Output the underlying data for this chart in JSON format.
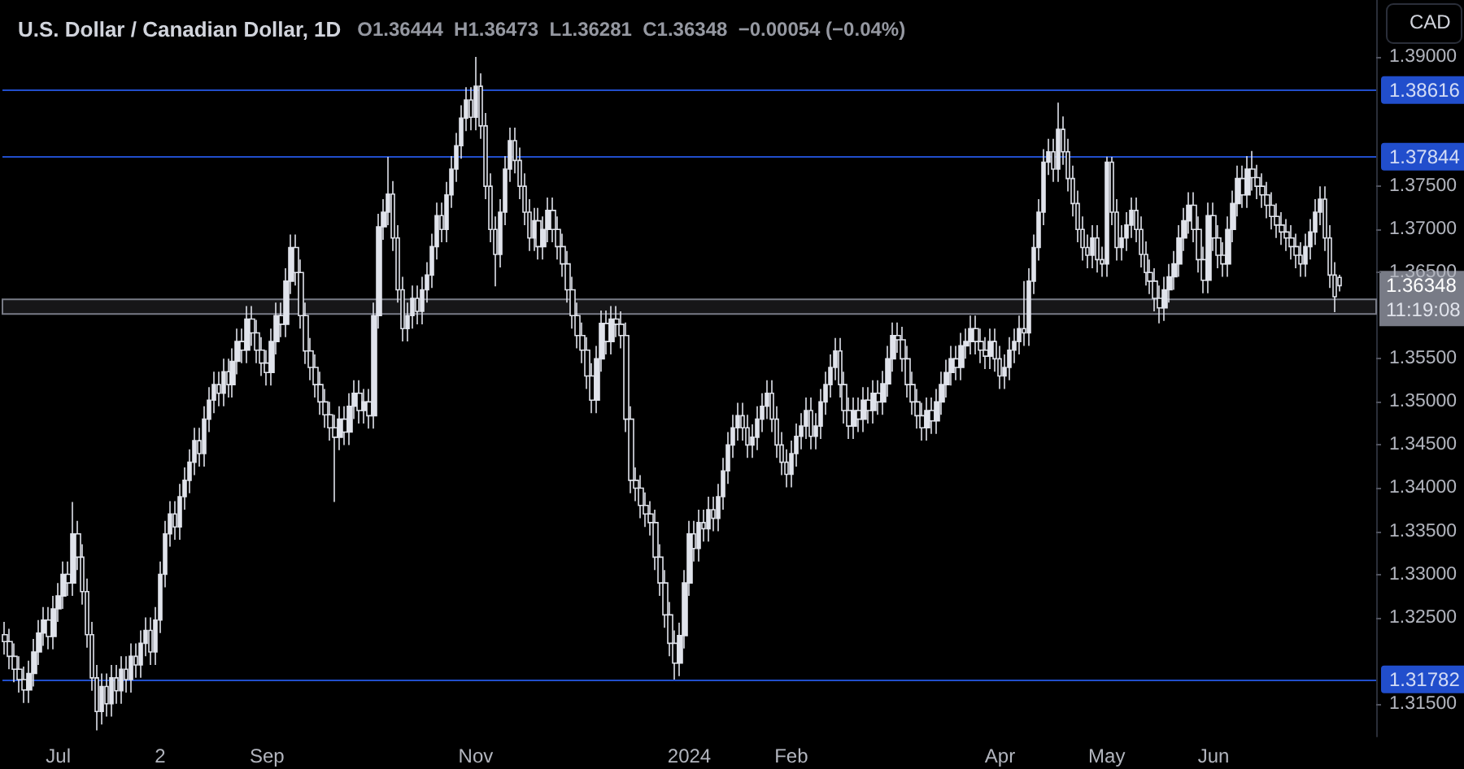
{
  "chart_data": {
    "type": "candlestick",
    "title": "U.S. Dollar / Canadian Dollar, 1D",
    "subtitle": "O1.36444  H1.36473  L1.36281  C1.36348  −0.00054 (−0.04%)",
    "categories": [
      null,
      null,
      null,
      null,
      null,
      null,
      null,
      null,
      null,
      null,
      null,
      "Jul",
      null,
      null,
      null,
      null,
      null,
      null,
      null,
      null,
      null,
      null,
      null,
      null,
      null,
      null,
      null,
      null,
      null,
      null,
      null,
      null,
      "2",
      null,
      null,
      null,
      null,
      null,
      null,
      null,
      null,
      null,
      null,
      null,
      null,
      null,
      null,
      null,
      null,
      null,
      null,
      null,
      null,
      null,
      "Sep",
      null,
      null,
      null,
      null,
      null,
      null,
      null,
      null,
      null,
      null,
      null,
      null,
      null,
      null,
      null,
      null,
      null,
      null,
      null,
      null,
      null,
      null,
      null,
      null,
      null,
      null,
      null,
      null,
      null,
      null,
      null,
      null,
      null,
      null,
      null,
      null,
      null,
      null,
      null,
      null,
      null,
      null,
      "Nov",
      null,
      null,
      null,
      null,
      null,
      null,
      null,
      null,
      null,
      null,
      null,
      null,
      null,
      null,
      null,
      null,
      null,
      null,
      null,
      null,
      null,
      null,
      null,
      null,
      null,
      null,
      null,
      null,
      null,
      null,
      null,
      null,
      null,
      null,
      null,
      null,
      null,
      null,
      null,
      null,
      null,
      null,
      null,
      "2024",
      null,
      null,
      null,
      null,
      null,
      null,
      null,
      null,
      null,
      null,
      null,
      null,
      null,
      null,
      null,
      null,
      null,
      null,
      null,
      null,
      "Feb",
      null,
      null,
      null,
      null,
      null,
      null,
      null,
      null,
      null,
      null,
      null,
      null,
      null,
      null,
      null,
      null,
      null,
      null,
      null,
      null,
      null,
      null,
      null,
      null,
      null,
      null,
      null,
      null,
      null,
      null,
      null,
      null,
      null,
      null,
      null,
      null,
      null,
      null,
      null,
      null,
      null,
      null,
      "Apr",
      null,
      null,
      null,
      null,
      null,
      null,
      null,
      null,
      null,
      null,
      null,
      null,
      null,
      null,
      null,
      null,
      null,
      null,
      null,
      null,
      null,
      "May",
      null,
      null,
      null,
      null,
      null,
      null,
      null,
      null,
      null,
      null,
      null,
      null,
      null,
      null,
      null,
      null,
      null,
      null,
      null,
      null,
      null,
      "Jun",
      null,
      null,
      null,
      null,
      null,
      null,
      null,
      null,
      null,
      null,
      null,
      null,
      null,
      null,
      null,
      null,
      null,
      null,
      null,
      null,
      null,
      null,
      null,
      null,
      null,
      null
    ],
    "series": [
      {
        "color": "#e0e3eb",
        "ohlc": [
          [
            1.323,
            1.3245,
            1.3207,
            1.3222
          ],
          [
            1.3222,
            1.3237,
            1.319,
            1.3205
          ],
          [
            1.3205,
            1.322,
            1.3175,
            1.319
          ],
          [
            1.319,
            1.3205,
            1.3163,
            1.3178
          ],
          [
            1.3178,
            1.3193,
            1.3151,
            1.3166
          ],
          [
            1.3166,
            1.32,
            1.3151,
            1.3185
          ],
          [
            1.3185,
            1.3225,
            1.317,
            1.321
          ],
          [
            1.321,
            1.3247,
            1.3195,
            1.3232
          ],
          [
            1.3232,
            1.3262,
            1.3217,
            1.3247
          ],
          [
            1.3247,
            1.3262,
            1.3213,
            1.3228
          ],
          [
            1.3228,
            1.3275,
            1.3213,
            1.326
          ],
          [
            1.326,
            1.329,
            1.3245,
            1.3275
          ],
          [
            1.3275,
            1.3315,
            1.326,
            1.33
          ],
          [
            1.33,
            1.3315,
            1.3275,
            1.329
          ],
          [
            1.329,
            1.3384,
            1.3275,
            1.3347
          ],
          [
            1.3347,
            1.3362,
            1.3305,
            1.332
          ],
          [
            1.332,
            1.3335,
            1.3265,
            1.328
          ],
          [
            1.328,
            1.3295,
            1.3215,
            1.323
          ],
          [
            1.323,
            1.3245,
            1.3165,
            1.318
          ],
          [
            1.318,
            1.3195,
            1.3119,
            1.3141
          ],
          [
            1.3141,
            1.3185,
            1.3126,
            1.317
          ],
          [
            1.317,
            1.3185,
            1.3135,
            1.315
          ],
          [
            1.315,
            1.3195,
            1.3135,
            1.318
          ],
          [
            1.318,
            1.3195,
            1.315,
            1.3165
          ],
          [
            1.3165,
            1.3205,
            1.315,
            1.319
          ],
          [
            1.319,
            1.3205,
            1.3163,
            1.3178
          ],
          [
            1.3178,
            1.322,
            1.3163,
            1.3205
          ],
          [
            1.3205,
            1.322,
            1.318,
            1.3195
          ],
          [
            1.3195,
            1.3235,
            1.318,
            1.322
          ],
          [
            1.322,
            1.325,
            1.3205,
            1.3235
          ],
          [
            1.3235,
            1.325,
            1.3195,
            1.321
          ],
          [
            1.321,
            1.3262,
            1.3195,
            1.3247
          ],
          [
            1.3247,
            1.3315,
            1.3232,
            1.33
          ],
          [
            1.33,
            1.3362,
            1.3285,
            1.3347
          ],
          [
            1.3347,
            1.3385,
            1.3332,
            1.337
          ],
          [
            1.337,
            1.3385,
            1.334,
            1.3355
          ],
          [
            1.3355,
            1.3405,
            1.334,
            1.339
          ],
          [
            1.339,
            1.3424,
            1.3375,
            1.3409
          ],
          [
            1.3409,
            1.3445,
            1.3394,
            1.343
          ],
          [
            1.343,
            1.347,
            1.3415,
            1.3455
          ],
          [
            1.3455,
            1.347,
            1.3425,
            1.344
          ],
          [
            1.344,
            1.3495,
            1.3425,
            1.348
          ],
          [
            1.348,
            1.3517,
            1.3465,
            1.3502
          ],
          [
            1.3502,
            1.3535,
            1.3487,
            1.352
          ],
          [
            1.352,
            1.3535,
            1.3495,
            1.351
          ],
          [
            1.351,
            1.355,
            1.3495,
            1.3535
          ],
          [
            1.3535,
            1.355,
            1.3505,
            1.352
          ],
          [
            1.352,
            1.3562,
            1.3505,
            1.3547
          ],
          [
            1.3547,
            1.3585,
            1.3532,
            1.357
          ],
          [
            1.357,
            1.3585,
            1.3545,
            1.356
          ],
          [
            1.356,
            1.3611,
            1.3545,
            1.3596
          ],
          [
            1.3596,
            1.3611,
            1.3565,
            1.358
          ],
          [
            1.358,
            1.3595,
            1.3545,
            1.356
          ],
          [
            1.356,
            1.3575,
            1.353,
            1.3545
          ],
          [
            1.3545,
            1.356,
            1.3519,
            1.3534
          ],
          [
            1.3534,
            1.3585,
            1.3519,
            1.357
          ],
          [
            1.357,
            1.3615,
            1.3555,
            1.36
          ],
          [
            1.36,
            1.3615,
            1.3575,
            1.359
          ],
          [
            1.359,
            1.3655,
            1.3575,
            1.364
          ],
          [
            1.364,
            1.3694,
            1.3625,
            1.3679
          ],
          [
            1.3679,
            1.3694,
            1.3635,
            1.365
          ],
          [
            1.365,
            1.3665,
            1.3585,
            1.36
          ],
          [
            1.36,
            1.3615,
            1.3544,
            1.3559
          ],
          [
            1.3559,
            1.3574,
            1.3525,
            1.354
          ],
          [
            1.354,
            1.3555,
            1.3505,
            1.352
          ],
          [
            1.352,
            1.3535,
            1.3485,
            1.35
          ],
          [
            1.35,
            1.3515,
            1.347,
            1.3485
          ],
          [
            1.3485,
            1.35,
            1.3455,
            1.347
          ],
          [
            1.347,
            1.3485,
            1.3384,
            1.3459
          ],
          [
            1.3459,
            1.3495,
            1.3444,
            1.348
          ],
          [
            1.348,
            1.3495,
            1.345,
            1.3465
          ],
          [
            1.3465,
            1.351,
            1.345,
            1.3495
          ],
          [
            1.3495,
            1.3525,
            1.348,
            1.351
          ],
          [
            1.351,
            1.3525,
            1.3475,
            1.349
          ],
          [
            1.349,
            1.3515,
            1.3475,
            1.35
          ],
          [
            1.35,
            1.3515,
            1.3469,
            1.3484
          ],
          [
            1.3484,
            1.3615,
            1.3469,
            1.36
          ],
          [
            1.36,
            1.3718,
            1.3585,
            1.3703
          ],
          [
            1.3703,
            1.3735,
            1.3688,
            1.372
          ],
          [
            1.372,
            1.3784,
            1.3705,
            1.3741
          ],
          [
            1.3741,
            1.3756,
            1.3675,
            1.369
          ],
          [
            1.369,
            1.3705,
            1.3615,
            1.363
          ],
          [
            1.363,
            1.3645,
            1.357,
            1.3585
          ],
          [
            1.3585,
            1.3615,
            1.357,
            1.36
          ],
          [
            1.36,
            1.3635,
            1.3585,
            1.362
          ],
          [
            1.362,
            1.3635,
            1.359,
            1.3605
          ],
          [
            1.3605,
            1.3645,
            1.359,
            1.363
          ],
          [
            1.363,
            1.3662,
            1.3615,
            1.3647
          ],
          [
            1.3647,
            1.3695,
            1.3632,
            1.368
          ],
          [
            1.368,
            1.3731,
            1.3665,
            1.3716
          ],
          [
            1.3716,
            1.3731,
            1.3685,
            1.37
          ],
          [
            1.37,
            1.3755,
            1.3685,
            1.374
          ],
          [
            1.374,
            1.3785,
            1.3725,
            1.377
          ],
          [
            1.377,
            1.3812,
            1.3755,
            1.3797
          ],
          [
            1.3797,
            1.3844,
            1.3782,
            1.3829
          ],
          [
            1.3829,
            1.3865,
            1.3814,
            1.385
          ],
          [
            1.385,
            1.3865,
            1.3815,
            1.383
          ],
          [
            1.383,
            1.39,
            1.3815,
            1.3866
          ],
          [
            1.3866,
            1.3881,
            1.3805,
            1.382
          ],
          [
            1.382,
            1.3835,
            1.3735,
            1.375
          ],
          [
            1.375,
            1.3765,
            1.3685,
            1.37
          ],
          [
            1.37,
            1.3715,
            1.3634,
            1.3671
          ],
          [
            1.3671,
            1.3735,
            1.3656,
            1.372
          ],
          [
            1.372,
            1.3785,
            1.3705,
            1.377
          ],
          [
            1.377,
            1.3818,
            1.3755,
            1.3803
          ],
          [
            1.3803,
            1.3818,
            1.3765,
            1.378
          ],
          [
            1.378,
            1.3795,
            1.3735,
            1.375
          ],
          [
            1.375,
            1.3765,
            1.3705,
            1.372
          ],
          [
            1.372,
            1.3735,
            1.3675,
            1.369
          ],
          [
            1.369,
            1.3725,
            1.3675,
            1.371
          ],
          [
            1.371,
            1.3725,
            1.3665,
            1.368
          ],
          [
            1.368,
            1.3715,
            1.3665,
            1.37
          ],
          [
            1.37,
            1.3737,
            1.3685,
            1.3722
          ],
          [
            1.3722,
            1.3737,
            1.3685,
            1.37
          ],
          [
            1.37,
            1.3715,
            1.3665,
            1.368
          ],
          [
            1.368,
            1.3695,
            1.3645,
            1.366
          ],
          [
            1.366,
            1.3675,
            1.3615,
            1.363
          ],
          [
            1.363,
            1.3645,
            1.3585,
            1.36
          ],
          [
            1.36,
            1.3615,
            1.3562,
            1.3577
          ],
          [
            1.3577,
            1.3592,
            1.3545,
            1.356
          ],
          [
            1.356,
            1.3575,
            1.3515,
            1.353
          ],
          [
            1.353,
            1.3545,
            1.3487,
            1.3502
          ],
          [
            1.3502,
            1.3565,
            1.3487,
            1.355
          ],
          [
            1.355,
            1.3606,
            1.3535,
            1.3591
          ],
          [
            1.3591,
            1.3606,
            1.3555,
            1.357
          ],
          [
            1.357,
            1.3611,
            1.3555,
            1.3596
          ],
          [
            1.3596,
            1.3611,
            1.3575,
            1.359
          ],
          [
            1.359,
            1.3605,
            1.3562,
            1.3577
          ],
          [
            1.3577,
            1.3592,
            1.3465,
            1.348
          ],
          [
            1.348,
            1.3495,
            1.3394,
            1.3409
          ],
          [
            1.3409,
            1.3424,
            1.3385,
            1.34
          ],
          [
            1.34,
            1.3415,
            1.3365,
            1.338
          ],
          [
            1.338,
            1.3395,
            1.3355,
            1.337
          ],
          [
            1.337,
            1.3385,
            1.3345,
            1.336
          ],
          [
            1.336,
            1.3375,
            1.3305,
            1.332
          ],
          [
            1.332,
            1.3335,
            1.3275,
            1.329
          ],
          [
            1.329,
            1.3305,
            1.3238,
            1.3253
          ],
          [
            1.3253,
            1.3268,
            1.3205,
            1.322
          ],
          [
            1.322,
            1.3235,
            1.3178,
            1.3197
          ],
          [
            1.3197,
            1.3244,
            1.3182,
            1.3229
          ],
          [
            1.3229,
            1.3305,
            1.3214,
            1.329
          ],
          [
            1.329,
            1.3362,
            1.3275,
            1.3347
          ],
          [
            1.3347,
            1.3362,
            1.3315,
            1.333
          ],
          [
            1.333,
            1.3375,
            1.3315,
            1.336
          ],
          [
            1.336,
            1.3375,
            1.3338,
            1.3353
          ],
          [
            1.3353,
            1.339,
            1.3338,
            1.3375
          ],
          [
            1.3375,
            1.339,
            1.335,
            1.3365
          ],
          [
            1.3365,
            1.3405,
            1.335,
            1.339
          ],
          [
            1.339,
            1.3435,
            1.3375,
            1.342
          ],
          [
            1.342,
            1.3465,
            1.3405,
            1.345
          ],
          [
            1.345,
            1.3485,
            1.3435,
            1.347
          ],
          [
            1.347,
            1.3499,
            1.3455,
            1.3484
          ],
          [
            1.3484,
            1.3499,
            1.3455,
            1.347
          ],
          [
            1.347,
            1.3485,
            1.3435,
            1.345
          ],
          [
            1.345,
            1.3474,
            1.3435,
            1.3459
          ],
          [
            1.3459,
            1.3495,
            1.3444,
            1.348
          ],
          [
            1.348,
            1.351,
            1.3465,
            1.3495
          ],
          [
            1.3495,
            1.3525,
            1.348,
            1.351
          ],
          [
            1.351,
            1.3525,
            1.3465,
            1.348
          ],
          [
            1.348,
            1.3495,
            1.3435,
            1.345
          ],
          [
            1.345,
            1.3465,
            1.3415,
            1.343
          ],
          [
            1.343,
            1.3445,
            1.3401,
            1.3416
          ],
          [
            1.3416,
            1.3455,
            1.3401,
            1.344
          ],
          [
            1.344,
            1.3475,
            1.3425,
            1.346
          ],
          [
            1.346,
            1.3487,
            1.3445,
            1.3472
          ],
          [
            1.3472,
            1.3505,
            1.3457,
            1.349
          ],
          [
            1.349,
            1.3505,
            1.3445,
            1.346
          ],
          [
            1.346,
            1.3487,
            1.3445,
            1.3472
          ],
          [
            1.3472,
            1.3515,
            1.3457,
            1.35
          ],
          [
            1.35,
            1.3535,
            1.3485,
            1.352
          ],
          [
            1.352,
            1.3555,
            1.3505,
            1.354
          ],
          [
            1.354,
            1.3574,
            1.3525,
            1.3559
          ],
          [
            1.3559,
            1.3574,
            1.3505,
            1.352
          ],
          [
            1.352,
            1.3535,
            1.3475,
            1.349
          ],
          [
            1.349,
            1.3505,
            1.3457,
            1.3472
          ],
          [
            1.3472,
            1.3505,
            1.3457,
            1.349
          ],
          [
            1.349,
            1.3505,
            1.3465,
            1.348
          ],
          [
            1.348,
            1.3517,
            1.3465,
            1.3502
          ],
          [
            1.3502,
            1.3517,
            1.3475,
            1.349
          ],
          [
            1.349,
            1.3525,
            1.3475,
            1.351
          ],
          [
            1.351,
            1.3525,
            1.3485,
            1.35
          ],
          [
            1.35,
            1.3536,
            1.3485,
            1.3521
          ],
          [
            1.3521,
            1.3565,
            1.3506,
            1.355
          ],
          [
            1.355,
            1.3592,
            1.3535,
            1.3577
          ],
          [
            1.3577,
            1.3592,
            1.3557,
            1.3572
          ],
          [
            1.3572,
            1.3587,
            1.3535,
            1.355
          ],
          [
            1.355,
            1.3565,
            1.3505,
            1.352
          ],
          [
            1.352,
            1.3535,
            1.3485,
            1.35
          ],
          [
            1.35,
            1.3515,
            1.3469,
            1.3484
          ],
          [
            1.3484,
            1.3499,
            1.3455,
            1.347
          ],
          [
            1.347,
            1.3505,
            1.3455,
            1.349
          ],
          [
            1.349,
            1.3505,
            1.3463,
            1.3478
          ],
          [
            1.3478,
            1.3515,
            1.3463,
            1.35
          ],
          [
            1.35,
            1.3535,
            1.3485,
            1.352
          ],
          [
            1.352,
            1.3549,
            1.3505,
            1.3534
          ],
          [
            1.3534,
            1.3565,
            1.3519,
            1.355
          ],
          [
            1.355,
            1.3565,
            1.3525,
            1.354
          ],
          [
            1.354,
            1.358,
            1.3525,
            1.3565
          ],
          [
            1.3565,
            1.3585,
            1.355,
            1.357
          ],
          [
            1.357,
            1.36,
            1.3555,
            1.3585
          ],
          [
            1.3585,
            1.36,
            1.3555,
            1.357
          ],
          [
            1.357,
            1.3585,
            1.3545,
            1.356
          ],
          [
            1.356,
            1.3575,
            1.3538,
            1.3553
          ],
          [
            1.3553,
            1.3585,
            1.3538,
            1.357
          ],
          [
            1.357,
            1.3585,
            1.3535,
            1.355
          ],
          [
            1.355,
            1.3565,
            1.3515,
            1.353
          ],
          [
            1.353,
            1.3555,
            1.3515,
            1.354
          ],
          [
            1.354,
            1.3575,
            1.3525,
            1.356
          ],
          [
            1.356,
            1.3585,
            1.3545,
            1.357
          ],
          [
            1.357,
            1.36,
            1.3555,
            1.3585
          ],
          [
            1.3585,
            1.364,
            1.3565,
            1.358
          ],
          [
            1.358,
            1.3655,
            1.3565,
            1.364
          ],
          [
            1.364,
            1.3694,
            1.3625,
            1.3679
          ],
          [
            1.3679,
            1.3735,
            1.3664,
            1.372
          ],
          [
            1.372,
            1.3793,
            1.3705,
            1.3778
          ],
          [
            1.3778,
            1.3805,
            1.3763,
            1.379
          ],
          [
            1.379,
            1.3805,
            1.3755,
            1.377
          ],
          [
            1.377,
            1.3847,
            1.3755,
            1.3816
          ],
          [
            1.3816,
            1.3831,
            1.3775,
            1.379
          ],
          [
            1.379,
            1.3805,
            1.3744,
            1.3759
          ],
          [
            1.3759,
            1.3774,
            1.3715,
            1.373
          ],
          [
            1.373,
            1.3745,
            1.3685,
            1.37
          ],
          [
            1.37,
            1.3715,
            1.3664,
            1.3679
          ],
          [
            1.3679,
            1.3694,
            1.3655,
            1.367
          ],
          [
            1.367,
            1.3705,
            1.3655,
            1.369
          ],
          [
            1.369,
            1.3705,
            1.365,
            1.3665
          ],
          [
            1.3665,
            1.368,
            1.3645,
            1.366
          ],
          [
            1.366,
            1.37844,
            1.3645,
            1.3778
          ],
          [
            1.3778,
            1.3784,
            1.3705,
            1.372
          ],
          [
            1.372,
            1.3735,
            1.3664,
            1.3679
          ],
          [
            1.3679,
            1.3705,
            1.3664,
            1.369
          ],
          [
            1.369,
            1.372,
            1.3675,
            1.3705
          ],
          [
            1.3705,
            1.3737,
            1.369,
            1.3722
          ],
          [
            1.3722,
            1.3737,
            1.3685,
            1.37
          ],
          [
            1.37,
            1.3715,
            1.3656,
            1.3671
          ],
          [
            1.3671,
            1.3686,
            1.3635,
            1.365
          ],
          [
            1.365,
            1.3665,
            1.3625,
            1.364
          ],
          [
            1.364,
            1.3655,
            1.3605,
            1.362
          ],
          [
            1.362,
            1.3635,
            1.3591,
            1.3609
          ],
          [
            1.3609,
            1.3645,
            1.3594,
            1.363
          ],
          [
            1.363,
            1.366,
            1.3615,
            1.3645
          ],
          [
            1.3645,
            1.3675,
            1.363,
            1.366
          ],
          [
            1.366,
            1.3705,
            1.3645,
            1.369
          ],
          [
            1.369,
            1.3725,
            1.3675,
            1.371
          ],
          [
            1.371,
            1.3743,
            1.3695,
            1.3728
          ],
          [
            1.3728,
            1.3743,
            1.3685,
            1.37
          ],
          [
            1.37,
            1.3715,
            1.365,
            1.3665
          ],
          [
            1.3665,
            1.368,
            1.3626,
            1.3641
          ],
          [
            1.3641,
            1.3731,
            1.3626,
            1.3716
          ],
          [
            1.3716,
            1.3731,
            1.3675,
            1.369
          ],
          [
            1.369,
            1.3705,
            1.3655,
            1.367
          ],
          [
            1.367,
            1.3685,
            1.3645,
            1.366
          ],
          [
            1.366,
            1.3715,
            1.3645,
            1.37
          ],
          [
            1.37,
            1.3745,
            1.3685,
            1.373
          ],
          [
            1.373,
            1.3774,
            1.3715,
            1.3759
          ],
          [
            1.3759,
            1.3774,
            1.3725,
            1.374
          ],
          [
            1.374,
            1.3785,
            1.3725,
            1.377
          ],
          [
            1.377,
            1.3791,
            1.3745,
            1.376
          ],
          [
            1.376,
            1.3775,
            1.3735,
            1.375
          ],
          [
            1.375,
            1.3765,
            1.3725,
            1.374
          ],
          [
            1.374,
            1.3755,
            1.3713,
            1.3728
          ],
          [
            1.3728,
            1.3743,
            1.37,
            1.3715
          ],
          [
            1.3715,
            1.373,
            1.369,
            1.3705
          ],
          [
            1.3705,
            1.372,
            1.3682,
            1.3697
          ],
          [
            1.3697,
            1.3712,
            1.3675,
            1.369
          ],
          [
            1.369,
            1.3705,
            1.3665,
            1.368
          ],
          [
            1.368,
            1.3695,
            1.3655,
            1.367
          ],
          [
            1.367,
            1.3685,
            1.3645,
            1.366
          ],
          [
            1.366,
            1.3695,
            1.3645,
            1.368
          ],
          [
            1.368,
            1.3712,
            1.3665,
            1.3697
          ],
          [
            1.3697,
            1.3735,
            1.3682,
            1.372
          ],
          [
            1.372,
            1.375,
            1.3705,
            1.3735
          ],
          [
            1.3735,
            1.375,
            1.3675,
            1.369
          ],
          [
            1.369,
            1.3705,
            1.3632,
            1.3647
          ],
          [
            1.3647,
            1.3662,
            1.3604,
            1.3622
          ],
          [
            1.36444,
            1.36473,
            1.36281,
            1.36348
          ]
        ]
      }
    ],
    "ylim": [
      1.3112,
      1.3966
    ],
    "yticks": [
      {
        "value": 1.315,
        "label": "1.31500"
      },
      {
        "value": 1.325,
        "label": "1.32500"
      },
      {
        "value": 1.33,
        "label": "1.33000"
      },
      {
        "value": 1.335,
        "label": "1.33500"
      },
      {
        "value": 1.34,
        "label": "1.34000"
      },
      {
        "value": 1.345,
        "label": "1.34500"
      },
      {
        "value": 1.35,
        "label": "1.35000"
      },
      {
        "value": 1.355,
        "label": "1.35500"
      },
      {
        "value": 1.365,
        "label": "1.36500"
      },
      {
        "value": 1.37,
        "label": "1.37000"
      },
      {
        "value": 1.375,
        "label": "1.37500"
      },
      {
        "value": 1.39,
        "label": "1.39000"
      }
    ],
    "ref_lines": [
      {
        "axis": "y",
        "value": 1.38616,
        "label": "1.38616",
        "color": "#2962ff"
      },
      {
        "axis": "y",
        "value": 1.37844,
        "label": "1.37844",
        "color": "#2962ff"
      },
      {
        "axis": "y",
        "value": 1.31782,
        "label": "1.31782",
        "color": "#2962ff"
      }
    ],
    "bands": [
      {
        "axis": "y",
        "from": 1.3602,
        "to": 1.3619,
        "color": "#787b86"
      }
    ],
    "annotations": [
      "CAD",
      "1.36348",
      "11:19:08"
    ],
    "grid": false
  }
}
